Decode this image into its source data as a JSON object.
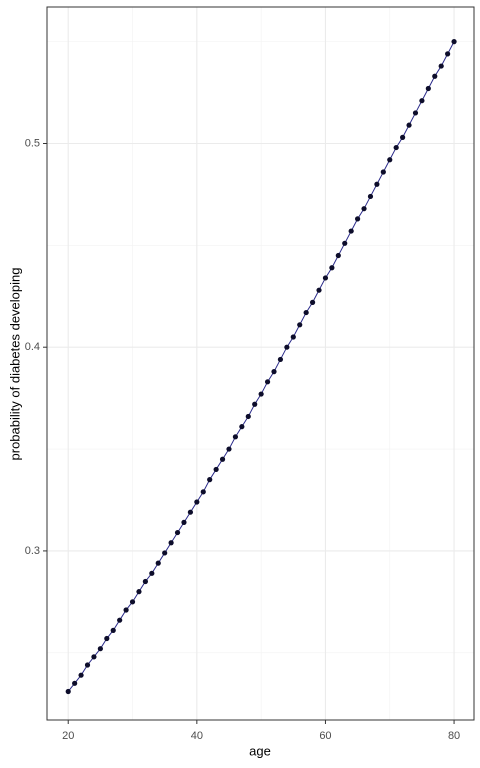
{
  "chart_data": {
    "type": "line",
    "x_label": "age",
    "y_label": "probability of diabetes developing",
    "x": [
      20,
      21,
      22,
      23,
      24,
      25,
      26,
      27,
      28,
      29,
      30,
      31,
      32,
      33,
      34,
      35,
      36,
      37,
      38,
      39,
      40,
      41,
      42,
      43,
      44,
      45,
      46,
      47,
      48,
      49,
      50,
      51,
      52,
      53,
      54,
      55,
      56,
      57,
      58,
      59,
      60,
      61,
      62,
      63,
      64,
      65,
      66,
      67,
      68,
      69,
      70,
      71,
      72,
      73,
      74,
      75,
      76,
      77,
      78,
      79,
      80
    ],
    "series": [
      {
        "color": "#0d0d2b",
        "line_color": "#2a2a8a",
        "values": [
          0.231,
          0.235,
          0.239,
          0.244,
          0.248,
          0.252,
          0.257,
          0.261,
          0.266,
          0.271,
          0.275,
          0.28,
          0.285,
          0.289,
          0.294,
          0.299,
          0.304,
          0.309,
          0.314,
          0.319,
          0.324,
          0.329,
          0.335,
          0.34,
          0.345,
          0.35,
          0.356,
          0.361,
          0.366,
          0.372,
          0.377,
          0.383,
          0.388,
          0.394,
          0.4,
          0.405,
          0.411,
          0.417,
          0.422,
          0.428,
          0.434,
          0.439,
          0.445,
          0.451,
          0.457,
          0.463,
          0.468,
          0.474,
          0.48,
          0.486,
          0.492,
          0.498,
          0.503,
          0.509,
          0.515,
          0.521,
          0.527,
          0.533,
          0.538,
          0.544,
          0.55
        ]
      }
    ],
    "xlim": [
      16.7,
      83.1
    ],
    "ylim": [
      0.217,
      0.567
    ],
    "xticks": [
      20,
      40,
      60,
      80
    ],
    "yticks": [
      0.3,
      0.4,
      0.5
    ],
    "x_minor_grid": [
      30,
      50,
      70
    ],
    "y_minor_grid": [
      0.25,
      0.35,
      0.45,
      0.55
    ],
    "grid": true
  }
}
